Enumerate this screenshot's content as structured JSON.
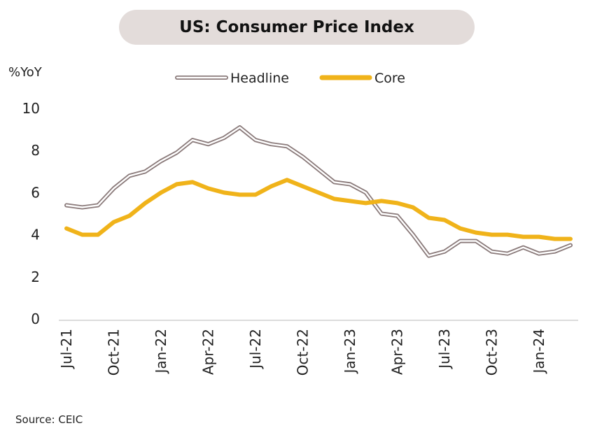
{
  "title": "US: Consumer Price Index",
  "y_unit": "%YoY",
  "source": "Source: CEIC",
  "chart_data": {
    "type": "line",
    "title": "US: Consumer Price Index",
    "ylabel": "%YoY",
    "xlabel": "",
    "ylim": [
      0,
      10
    ],
    "yticks": [
      "0",
      "2",
      "4",
      "6",
      "8",
      "10"
    ],
    "x": [
      "Jul-21",
      "Aug-21",
      "Sep-21",
      "Oct-21",
      "Nov-21",
      "Dec-21",
      "Jan-22",
      "Feb-22",
      "Mar-22",
      "Apr-22",
      "May-22",
      "Jun-22",
      "Jul-22",
      "Aug-22",
      "Sep-22",
      "Oct-22",
      "Nov-22",
      "Dec-22",
      "Jan-23",
      "Feb-23",
      "Mar-23",
      "Apr-23",
      "May-23",
      "Jun-23",
      "Jul-23",
      "Aug-23",
      "Sep-23",
      "Oct-23",
      "Nov-23",
      "Dec-23",
      "Jan-24",
      "Feb-24",
      "Mar-24"
    ],
    "xtick_labels": [
      "Jul-21",
      "Oct-21",
      "Jan-22",
      "Apr-22",
      "Jul-22",
      "Oct-22",
      "Jan-23",
      "Apr-23",
      "Jul-23",
      "Oct-23",
      "Jan-24"
    ],
    "legend_position": "top",
    "grid": false,
    "series": [
      {
        "name": "Headline",
        "color": "#8a7a7a",
        "style": "double-line",
        "values": [
          5.4,
          5.3,
          5.4,
          6.2,
          6.8,
          7.0,
          7.5,
          7.9,
          8.5,
          8.3,
          8.6,
          9.1,
          8.5,
          8.3,
          8.2,
          7.7,
          7.1,
          6.5,
          6.4,
          6.0,
          5.0,
          4.9,
          4.0,
          3.0,
          3.2,
          3.7,
          3.7,
          3.2,
          3.1,
          3.4,
          3.1,
          3.2,
          3.5
        ]
      },
      {
        "name": "Core",
        "color": "#f0b31a",
        "style": "thick-line",
        "values": [
          4.3,
          4.0,
          4.0,
          4.6,
          4.9,
          5.5,
          6.0,
          6.4,
          6.5,
          6.2,
          6.0,
          5.9,
          5.9,
          6.3,
          6.6,
          6.3,
          6.0,
          5.7,
          5.6,
          5.5,
          5.6,
          5.5,
          5.3,
          4.8,
          4.7,
          4.3,
          4.1,
          4.0,
          4.0,
          3.9,
          3.9,
          3.8,
          3.8
        ]
      }
    ]
  }
}
